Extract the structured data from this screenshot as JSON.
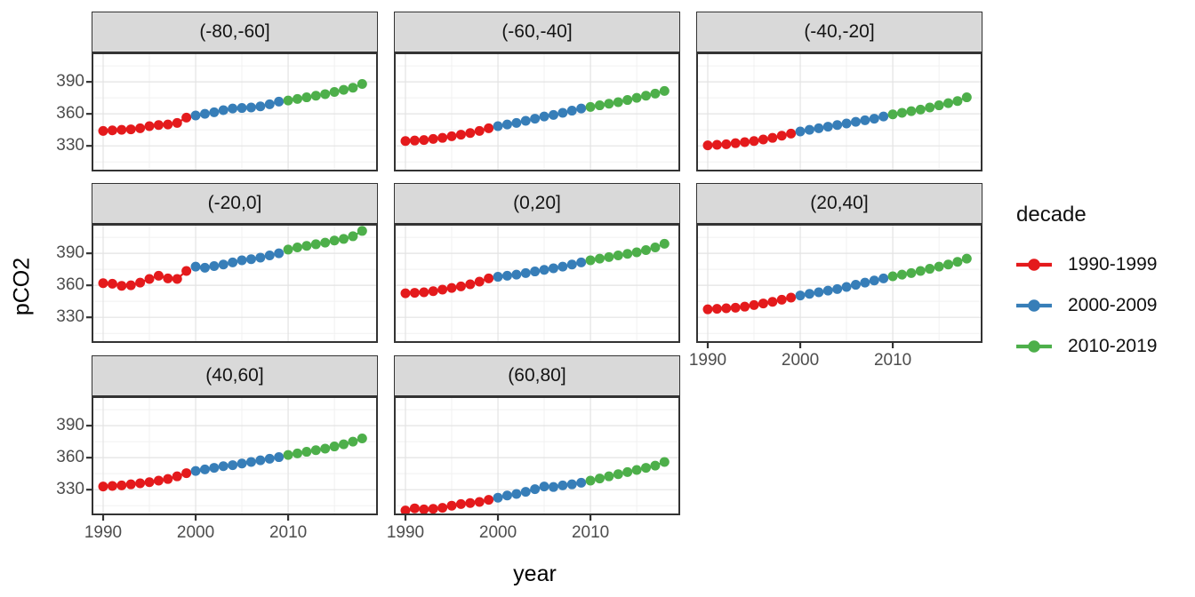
{
  "chart_data": {
    "type": "scatter",
    "xlabel": "year",
    "ylabel": "pCO2",
    "x_ticks": [
      "1990",
      "2000",
      "2010"
    ],
    "x_tick_years": [
      1990,
      2000,
      2010
    ],
    "x_minor": [
      1995,
      2005,
      2015
    ],
    "y_ticks": [
      "390",
      "360",
      "330"
    ],
    "y_tick_values": [
      390,
      360,
      330
    ],
    "y_minor": [
      315,
      345,
      375,
      405
    ],
    "x_range": [
      1988.75,
      2019.7
    ],
    "y_range": [
      306,
      417.6
    ],
    "grid": true,
    "legend": {
      "title": "decade",
      "position": "right",
      "items": [
        {
          "label": "1990-1999",
          "color": "#E41A1C"
        },
        {
          "label": "2000-2009",
          "color": "#377EB8"
        },
        {
          "label": "2010-2019",
          "color": "#4DAF4A"
        }
      ]
    },
    "colors": {
      "strip_bg": "#d9d9d9",
      "panel_bg": "#ffffff",
      "panel_border": "#333333",
      "grid_major": "#e3e3e3",
      "grid_minor": "#f1f1f1",
      "tick_text": "#4d4d4d"
    },
    "years": [
      1990,
      1991,
      1992,
      1993,
      1994,
      1995,
      1996,
      1997,
      1998,
      1999,
      2000,
      2001,
      2002,
      2003,
      2004,
      2005,
      2006,
      2007,
      2008,
      2009,
      2010,
      2011,
      2012,
      2013,
      2014,
      2015,
      2016,
      2017,
      2018
    ],
    "facets": [
      {
        "label": "(-80,-60]",
        "values": [
          344,
          344.5,
          345,
          345.5,
          346.5,
          348.5,
          349.5,
          350,
          351.5,
          356.5,
          358.5,
          360,
          361.5,
          363.5,
          365,
          365.5,
          366,
          367,
          369,
          371.5,
          372.5,
          374,
          375.5,
          377,
          378.5,
          380.5,
          382.5,
          384.5,
          388
        ]
      },
      {
        "label": "(-60,-40]",
        "values": [
          334.5,
          335,
          335.5,
          336.5,
          337.5,
          339,
          340.5,
          342,
          344,
          346.5,
          348.5,
          350,
          351.5,
          353.5,
          355.5,
          357.5,
          359,
          361,
          363,
          365,
          366.5,
          368,
          369.5,
          371,
          373,
          375,
          377,
          379,
          381.5
        ]
      },
      {
        "label": "(-40,-20]",
        "values": [
          330.5,
          331,
          331.5,
          332.5,
          333.5,
          334.5,
          336,
          337.5,
          339.5,
          341.5,
          343.5,
          345,
          346.5,
          348,
          349.5,
          351,
          352.5,
          354,
          355.5,
          357.5,
          359.5,
          361,
          362.5,
          364,
          366,
          368,
          370,
          372,
          375.5
        ]
      },
      {
        "label": "(-20,0]",
        "values": [
          362,
          361.5,
          359.5,
          360,
          362.5,
          366,
          369,
          366.5,
          366,
          373.5,
          377.5,
          376.5,
          378,
          379.5,
          381.5,
          383.5,
          384.5,
          386,
          388,
          390,
          393.5,
          395.5,
          397,
          398.5,
          400,
          402,
          403.5,
          406,
          411
        ]
      },
      {
        "label": "(0,20]",
        "values": [
          352.5,
          353,
          353.5,
          354.5,
          356,
          357.5,
          359,
          361,
          363.5,
          366.5,
          368,
          369,
          370,
          371.5,
          373,
          374.5,
          376,
          377.5,
          379.5,
          381.5,
          383.5,
          385,
          386.5,
          388,
          389.5,
          391,
          393,
          395.5,
          399
        ]
      },
      {
        "label": "(20,40]",
        "values": [
          337.5,
          338,
          338.5,
          339,
          340,
          341.5,
          343,
          344.5,
          346.5,
          348.5,
          350.5,
          352,
          353.5,
          355,
          356.5,
          358.5,
          360.5,
          362.5,
          364.5,
          366.5,
          368.5,
          370,
          371.5,
          373.5,
          375.5,
          377.5,
          379.5,
          382,
          385
        ]
      },
      {
        "label": "(40,60]",
        "values": [
          333,
          333.5,
          334,
          335,
          336,
          337,
          338.5,
          340,
          342.5,
          345.5,
          347.5,
          349,
          350.5,
          352,
          353,
          354.5,
          356,
          357.5,
          359,
          360.5,
          362.5,
          364,
          365.5,
          367,
          368.5,
          370.5,
          372.5,
          375,
          378
        ]
      },
      {
        "label": "(60,80]",
        "values": [
          310.5,
          312.5,
          311.5,
          312,
          313,
          315,
          316.5,
          317.5,
          318.5,
          320.5,
          322.5,
          324.5,
          326,
          328,
          330.5,
          333,
          332.5,
          334,
          335,
          336.5,
          338.5,
          340.5,
          342.5,
          344.5,
          346.5,
          348.5,
          350.5,
          352.5,
          356
        ]
      }
    ]
  }
}
